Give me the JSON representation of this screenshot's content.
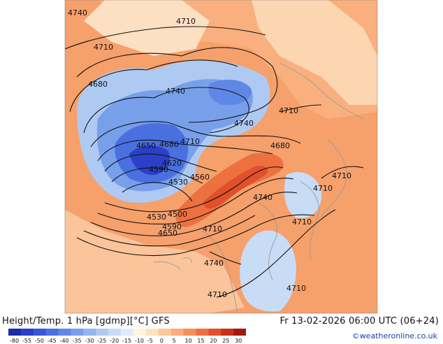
{
  "header": {
    "title": "Height/Temp. 1 hPa [gdmp][°C] GFS",
    "valid_time": "Fr 13-02-2026 06:00 UTC (06+24)",
    "credit": "©weatheronline.co.uk"
  },
  "colorbar": {
    "ticks": [
      "-80",
      "-55",
      "-50",
      "-45",
      "-40",
      "-35",
      "-30",
      "-25",
      "-20",
      "-15",
      "-10",
      "-5",
      "0",
      "5",
      "10",
      "15",
      "20",
      "25",
      "30"
    ],
    "colors": [
      "#1a2aa8",
      "#2a40c8",
      "#3458d8",
      "#4a70e0",
      "#5f88e6",
      "#78a0ea",
      "#92b6ef",
      "#aecaf3",
      "#c8dcf6",
      "#e0ecfa",
      "#fff4dc",
      "#fde3bf",
      "#fbc99a",
      "#f9ad78",
      "#f39058",
      "#ec7040",
      "#e0502a",
      "#c8321a",
      "#a0180e"
    ]
  },
  "contour_labels": [
    {
      "text": "4740"
    },
    {
      "text": "4710"
    },
    {
      "text": "4710"
    },
    {
      "text": "4680"
    },
    {
      "text": "4740"
    },
    {
      "text": "4740"
    },
    {
      "text": "4710"
    },
    {
      "text": "4680"
    },
    {
      "text": "4650"
    },
    {
      "text": "4680"
    },
    {
      "text": "4710"
    },
    {
      "text": "4620"
    },
    {
      "text": "4590"
    },
    {
      "text": "4560"
    },
    {
      "text": "4530"
    },
    {
      "text": "4530"
    },
    {
      "text": "4500"
    },
    {
      "text": "4590"
    },
    {
      "text": "4650"
    },
    {
      "text": "4710"
    },
    {
      "text": "4740"
    },
    {
      "text": "4710"
    },
    {
      "text": "4710"
    },
    {
      "text": "4710"
    },
    {
      "text": "4740"
    },
    {
      "text": "4710"
    },
    {
      "text": "4710"
    }
  ]
}
